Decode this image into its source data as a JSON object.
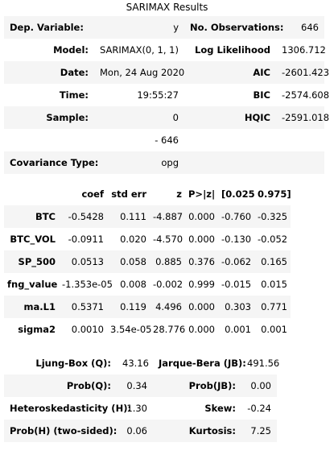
{
  "title": "SARIMAX Results",
  "summary": {
    "rows": [
      {
        "l_label": "Dep. Variable:",
        "l_value": "y",
        "r_label": "No. Observations:",
        "r_value": "646"
      },
      {
        "l_label": "Model:",
        "l_value": "SARIMAX(0, 1, 1)",
        "r_label": "Log Likelihood",
        "r_value": "1306.712"
      },
      {
        "l_label": "Date:",
        "l_value": "Mon, 24 Aug 2020",
        "r_label": "AIC",
        "r_value": "-2601.423"
      },
      {
        "l_label": "Time:",
        "l_value": "19:55:27",
        "r_label": "BIC",
        "r_value": "-2574.608"
      },
      {
        "l_label": "Sample:",
        "l_value": "0",
        "r_label": "HQIC",
        "r_value": "-2591.018"
      },
      {
        "l_label": "",
        "l_value": "- 646",
        "r_label": "",
        "r_value": ""
      },
      {
        "l_label": "Covariance Type:",
        "l_value": "opg",
        "r_label": "",
        "r_value": ""
      }
    ]
  },
  "coef_table": {
    "headers": [
      "",
      "coef",
      "std err",
      "z",
      "P>|z|",
      "[0.025",
      "0.975]"
    ],
    "rows": [
      {
        "name": "BTC",
        "coef": "-0.5428",
        "std_err": "0.111",
        "z": "-4.887",
        "p": "0.000",
        "lo": "-0.760",
        "hi": "-0.325"
      },
      {
        "name": "BTC_VOL",
        "coef": "-0.0911",
        "std_err": "0.020",
        "z": "-4.570",
        "p": "0.000",
        "lo": "-0.130",
        "hi": "-0.052"
      },
      {
        "name": "SP_500",
        "coef": "0.0513",
        "std_err": "0.058",
        "z": "0.885",
        "p": "0.376",
        "lo": "-0.062",
        "hi": "0.165"
      },
      {
        "name": "fng_value",
        "coef": "-1.353e-05",
        "std_err": "0.008",
        "z": "-0.002",
        "p": "0.999",
        "lo": "-0.015",
        "hi": "0.015"
      },
      {
        "name": "ma.L1",
        "coef": "0.5371",
        "std_err": "0.119",
        "z": "4.496",
        "p": "0.000",
        "lo": "0.303",
        "hi": "0.771"
      },
      {
        "name": "sigma2",
        "coef": "0.0010",
        "std_err": "3.54e-05",
        "z": "28.776",
        "p": "0.000",
        "lo": "0.001",
        "hi": "0.001"
      }
    ]
  },
  "diagnostics": {
    "rows": [
      {
        "l_label": "Ljung-Box (Q):",
        "l_value": "43.16",
        "r_label": "Jarque-Bera (JB):",
        "r_value": "491.56"
      },
      {
        "l_label": "Prob(Q):",
        "l_value": "0.34",
        "r_label": "Prob(JB):",
        "r_value": "0.00"
      },
      {
        "l_label": "Heteroskedasticity (H):",
        "l_value": "1.30",
        "r_label": "Skew:",
        "r_value": "-0.24"
      },
      {
        "l_label": "Prob(H) (two-sided):",
        "l_value": "0.06",
        "r_label": "Kurtosis:",
        "r_value": "7.25"
      }
    ]
  }
}
